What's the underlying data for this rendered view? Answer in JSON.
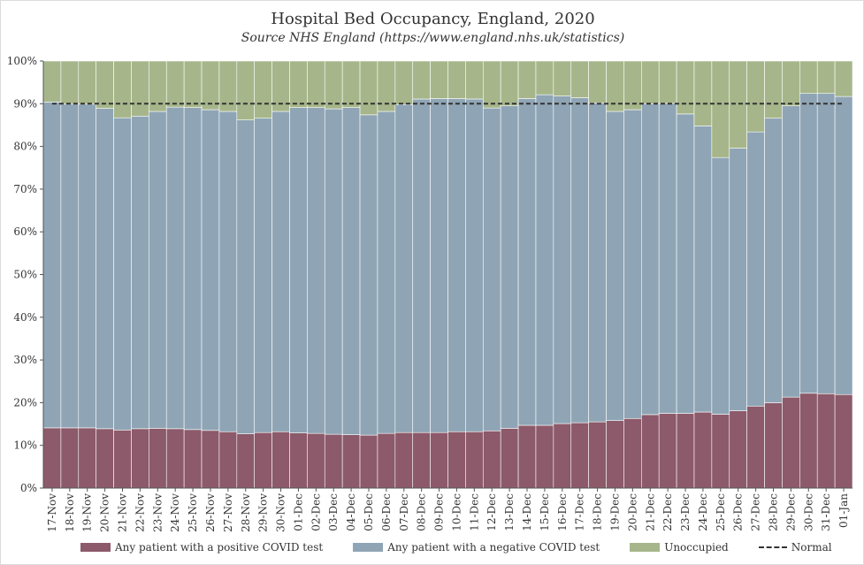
{
  "title": "Hospital Bed Occupancy, England, 2020",
  "subtitle": "Source NHS England (https://www.england.nhs.uk/statistics)",
  "colors": {
    "positive": "#8c5a6a",
    "negative": "#8fa5b5",
    "unoccupied": "#a6b68a",
    "normal": "#333333"
  },
  "legend": {
    "positive": "Any patient with a positive COVID test",
    "negative": "Any patient with a negative COVID test",
    "unoccupied": "Unoccupied",
    "normal": "Normal"
  },
  "chart_data": {
    "type": "bar",
    "stacked": true,
    "title": "Hospital Bed Occupancy, England, 2020",
    "subtitle": "Source NHS England (https://www.england.nhs.uk/statistics)",
    "ylim": [
      0,
      100
    ],
    "yticks": [
      "0%",
      "10%",
      "20%",
      "30%",
      "40%",
      "50%",
      "60%",
      "70%",
      "80%",
      "90%",
      "100%"
    ],
    "grid": false,
    "legend_position": "bottom",
    "categories": [
      "17-Nov",
      "18-Nov",
      "19-Nov",
      "20-Nov",
      "21-Nov",
      "22-Nov",
      "23-Nov",
      "24-Nov",
      "25-Nov",
      "26-Nov",
      "27-Nov",
      "28-Nov",
      "29-Nov",
      "30-Nov",
      "01-Dec",
      "02-Dec",
      "03-Dec",
      "04-Dec",
      "05-Dec",
      "06-Dec",
      "07-Dec",
      "08-Dec",
      "09-Dec",
      "10-Dec",
      "11-Dec",
      "12-Dec",
      "13-Dec",
      "14-Dec",
      "15-Dec",
      "16-Dec",
      "17-Dec",
      "18-Dec",
      "19-Dec",
      "20-Dec",
      "21-Dec",
      "22-Dec",
      "23-Dec",
      "24-Dec",
      "25-Dec",
      "26-Dec",
      "27-Dec",
      "28-Dec",
      "29-Dec",
      "30-Dec",
      "31-Dec",
      "01-Jan"
    ],
    "series": [
      {
        "name": "Any patient with a positive COVID test",
        "values": [
          14.1,
          14.1,
          14.1,
          13.9,
          13.6,
          13.9,
          14.0,
          13.9,
          13.7,
          13.5,
          13.2,
          12.7,
          13.0,
          13.2,
          12.9,
          12.8,
          12.6,
          12.5,
          12.4,
          12.8,
          13.0,
          13.0,
          13.0,
          13.2,
          13.2,
          13.4,
          14.0,
          14.7,
          14.7,
          15.1,
          15.3,
          15.5,
          15.8,
          16.3,
          17.2,
          17.5,
          17.5,
          17.8,
          17.3,
          18.1,
          19.2,
          20.0,
          21.3,
          22.2,
          22.1,
          21.9
        ]
      },
      {
        "name": "Any patient with a negative COVID test",
        "values": [
          76.3,
          75.8,
          75.8,
          75.0,
          73.1,
          73.2,
          74.2,
          75.3,
          75.4,
          75.1,
          75.0,
          73.5,
          73.6,
          75.0,
          76.2,
          76.3,
          76.2,
          76.6,
          75.0,
          75.4,
          76.8,
          78.1,
          78.2,
          78.0,
          77.9,
          75.6,
          75.5,
          76.5,
          77.4,
          76.7,
          76.1,
          74.7,
          72.4,
          72.3,
          72.8,
          72.6,
          70.1,
          67.0,
          60.1,
          61.5,
          64.2,
          66.6,
          68.2,
          70.2,
          70.3,
          69.8
        ]
      },
      {
        "name": "Unoccupied",
        "values": [
          9.6,
          10.1,
          10.1,
          11.1,
          13.3,
          12.9,
          11.8,
          10.8,
          10.9,
          11.4,
          11.8,
          13.8,
          13.4,
          11.8,
          10.9,
          10.9,
          11.2,
          10.9,
          12.6,
          11.8,
          10.2,
          8.9,
          8.8,
          8.8,
          8.9,
          11.0,
          10.5,
          8.8,
          7.9,
          8.2,
          8.6,
          9.8,
          11.8,
          11.4,
          10.0,
          9.9,
          12.4,
          15.2,
          22.6,
          20.4,
          16.6,
          13.4,
          10.5,
          7.6,
          7.6,
          8.3
        ]
      }
    ],
    "reference_line": {
      "name": "Normal",
      "value": 90,
      "style": "dashed"
    }
  }
}
